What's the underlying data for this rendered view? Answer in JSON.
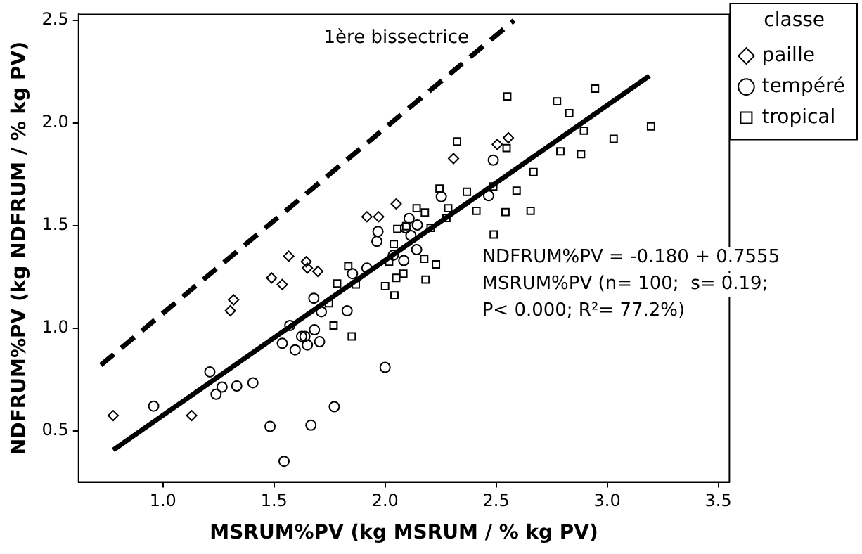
{
  "chart_data": {
    "type": "scatter",
    "xlabel": "MSRUM%PV (kg MSRUM / % kg PV)",
    "ylabel": "NDFRUM%PV (kg NDFRUM / % kg PV)",
    "legend_title": "classe",
    "legend": "top right",
    "xlim": [
      0.62,
      3.55
    ],
    "ylim": [
      0.25,
      2.53
    ],
    "xticks": [
      {
        "value": 1,
        "label": "1.0"
      },
      {
        "value": 1.5,
        "label": "1.5"
      },
      {
        "value": 2,
        "label": "2.0"
      },
      {
        "value": 2.5,
        "label": "2.5"
      },
      {
        "value": 3,
        "label": "3.0"
      },
      {
        "value": 3.5,
        "label": "3.5"
      }
    ],
    "yticks": [
      {
        "value": 0.5,
        "label": "0.5"
      },
      {
        "value": 1,
        "label": "1.0"
      },
      {
        "value": 1.5,
        "label": "1.5"
      },
      {
        "value": 2,
        "label": "2.0"
      },
      {
        "value": 2.5,
        "label": "2.5"
      }
    ],
    "annotations": [
      "NDFRUM%PV = -0.180 + 0.7555 MSRUM%PV (n= 100;  s= 0.19; P< 0.000; R²= 77.2%)"
    ],
    "series": [
      {
        "name": "paille",
        "color": "#000000",
        "marker": "diamond",
        "x": [
          0.776,
          1.129,
          1.303,
          1.318,
          1.489,
          1.537,
          1.566,
          1.645,
          1.65,
          1.697,
          1.918,
          1.971,
          2.05,
          2.308,
          2.505,
          2.555
        ],
        "values": [
          0.574,
          0.574,
          1.085,
          1.138,
          1.245,
          1.213,
          1.351,
          1.324,
          1.293,
          1.277,
          1.543,
          1.543,
          1.606,
          1.827,
          1.896,
          1.928
        ]
      },
      {
        "name": "tempéré",
        "color": "#000000",
        "marker": "circle",
        "x": [
          0.958,
          1.211,
          1.239,
          1.266,
          1.332,
          1.405,
          1.482,
          1.545,
          1.537,
          1.571,
          1.595,
          1.624,
          1.639,
          1.65,
          1.666,
          1.679,
          1.682,
          1.705,
          1.713,
          1.771,
          1.829,
          1.853,
          1.918,
          1.963,
          1.968,
          2.0,
          2.037,
          2.084,
          2.092,
          2.108,
          2.116,
          2.142,
          2.145,
          2.253,
          2.466,
          2.487
        ],
        "values": [
          0.62,
          0.787,
          0.678,
          0.713,
          0.718,
          0.734,
          0.521,
          0.351,
          0.926,
          1.013,
          0.894,
          0.96,
          0.96,
          0.918,
          0.527,
          1.146,
          0.992,
          0.934,
          1.08,
          0.617,
          1.085,
          1.266,
          1.293,
          1.423,
          1.471,
          0.809,
          1.356,
          1.33,
          1.489,
          1.535,
          1.452,
          1.383,
          1.503,
          1.641,
          1.646,
          1.819
        ]
      },
      {
        "name": "tropical",
        "color": "#000000",
        "marker": "square",
        "x": [
          1.834,
          1.784,
          1.747,
          1.768,
          1.85,
          1.868,
          2.0,
          2.018,
          2.042,
          2.05,
          2.039,
          2.055,
          2.082,
          2.095,
          2.142,
          2.179,
          2.176,
          2.182,
          2.205,
          2.229,
          2.245,
          2.284,
          2.276,
          2.324,
          2.368,
          2.411,
          2.487,
          2.489,
          2.55,
          2.542,
          2.547,
          2.592,
          2.655,
          2.668,
          2.774,
          2.789,
          2.829,
          2.882,
          2.895,
          2.945,
          3.029,
          3.197
        ],
        "values": [
          1.303,
          1.218,
          1.122,
          1.013,
          0.96,
          1.213,
          1.205,
          1.324,
          1.16,
          1.245,
          1.41,
          1.484,
          1.266,
          1.497,
          1.585,
          1.564,
          1.338,
          1.237,
          1.489,
          1.311,
          1.681,
          1.585,
          1.537,
          1.91,
          1.665,
          1.572,
          1.691,
          1.457,
          2.13,
          1.566,
          1.878,
          1.67,
          1.572,
          1.761,
          2.106,
          1.862,
          2.048,
          1.848,
          1.963,
          2.168,
          1.923,
          1.984
        ]
      },
      {
        "name": "1ère bissectrice",
        "type": "line",
        "color": "#000000",
        "line_style": "dashed",
        "x": [
          0.72,
          2.58
        ],
        "values": [
          0.82,
          2.5
        ]
      },
      {
        "type": "line",
        "color": "#000000",
        "line_style": "solid",
        "x": [
          0.776,
          3.19
        ],
        "values": [
          0.406,
          2.23
        ]
      }
    ]
  }
}
